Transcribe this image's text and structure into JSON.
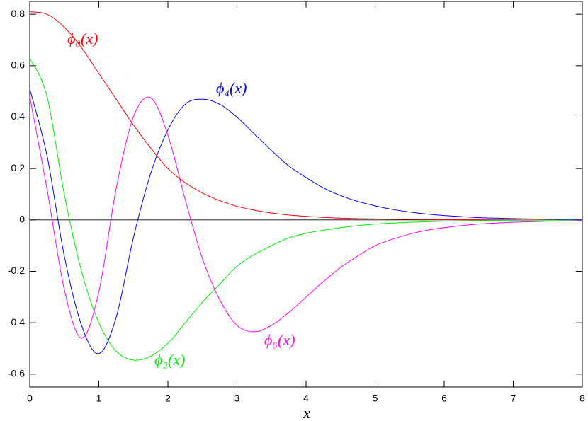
{
  "chart_data": {
    "type": "line",
    "x_label": "x",
    "x": [
      0,
      0.25,
      0.5,
      0.75,
      1,
      1.25,
      1.5,
      1.75,
      2,
      2.25,
      2.5,
      2.75,
      3,
      3.25,
      3.5,
      3.75,
      4,
      4.25,
      4.5,
      4.75,
      5,
      5.25,
      5.5,
      5.75,
      6,
      6.25,
      6.5,
      6.75,
      7,
      7.25,
      7.5,
      7.75,
      8
    ],
    "series": [
      {
        "name": "ϕ₀(x)",
        "color": "#ff0000",
        "values": [
          0.81,
          0.8,
          0.75,
          0.67,
          0.57,
          0.47,
          0.37,
          0.28,
          0.2,
          0.145,
          0.105,
          0.075,
          0.053,
          0.038,
          0.027,
          0.019,
          0.014,
          0.01,
          0.007,
          0.005,
          0.004,
          0.003,
          0.002,
          0.0015,
          0.001,
          0.001,
          0.0005,
          0,
          0,
          0,
          0,
          0,
          0
        ]
      },
      {
        "name": "ϕ₂(x)",
        "color": "#00ee00",
        "values": [
          0.63,
          0.48,
          0.1,
          -0.2,
          -0.4,
          -0.51,
          -0.545,
          -0.53,
          -0.48,
          -0.4,
          -0.32,
          -0.25,
          -0.18,
          -0.135,
          -0.1,
          -0.07,
          -0.052,
          -0.04,
          -0.03,
          -0.022,
          -0.016,
          -0.012,
          -0.009,
          -0.007,
          -0.005,
          -0.004,
          -0.003,
          -0.002,
          -0.0015,
          -0.001,
          -0.001,
          -0.0005,
          0
        ]
      },
      {
        "name": "ϕ₄(x)",
        "color": "#0000ff",
        "values": [
          0.51,
          0.25,
          -0.14,
          -0.41,
          -0.52,
          -0.38,
          -0.07,
          0.18,
          0.35,
          0.45,
          0.47,
          0.45,
          0.4,
          0.335,
          0.27,
          0.21,
          0.165,
          0.125,
          0.095,
          0.072,
          0.055,
          0.041,
          0.031,
          0.023,
          0.017,
          0.013,
          0.009,
          0.007,
          0.005,
          0.004,
          0.003,
          0.002,
          0.0015
        ]
      },
      {
        "name": "ϕ₆(x)",
        "color": "#ff00ff",
        "values": [
          0.48,
          0.12,
          -0.27,
          -0.46,
          -0.28,
          0.12,
          0.4,
          0.475,
          0.33,
          0.08,
          -0.15,
          -0.31,
          -0.41,
          -0.435,
          -0.41,
          -0.36,
          -0.3,
          -0.24,
          -0.185,
          -0.14,
          -0.1,
          -0.075,
          -0.055,
          -0.04,
          -0.03,
          -0.022,
          -0.016,
          -0.012,
          -0.009,
          -0.007,
          -0.005,
          -0.004,
          -0.003
        ]
      }
    ],
    "xlim": [
      0,
      8
    ],
    "xticks": [
      0,
      1,
      2,
      3,
      4,
      5,
      6,
      7,
      8
    ],
    "ylim": [
      -0.65,
      0.85
    ],
    "yticks": [
      -0.6,
      -0.4,
      -0.2,
      0,
      0.2,
      0.4,
      0.6,
      0.8
    ],
    "grid": false
  }
}
